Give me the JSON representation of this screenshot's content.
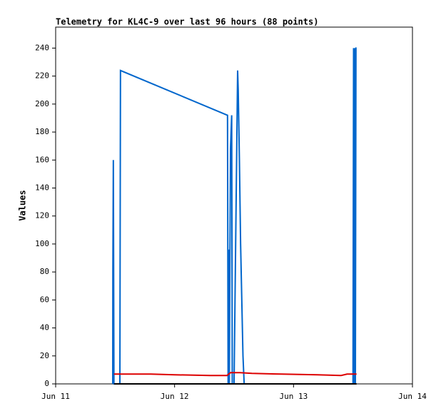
{
  "chart_data": {
    "type": "line",
    "title": "Telemetry for KL4C-9 over last 96 hours (88 points)",
    "ylabel": "Values",
    "xlim": [
      0,
      3
    ],
    "xticks": [
      {
        "value": 0,
        "label": "Jun 11"
      },
      {
        "value": 1,
        "label": "Jun 12"
      },
      {
        "value": 2,
        "label": "Jun 13"
      },
      {
        "value": 3,
        "label": "Jun 14"
      }
    ],
    "ylim": [
      0,
      255
    ],
    "yticks": [
      0,
      20,
      40,
      60,
      80,
      100,
      120,
      140,
      160,
      180,
      200,
      220,
      240
    ],
    "series": [
      {
        "color": "#0066cc",
        "x": [
          0.48,
          0.481,
          0.485,
          0.49,
          0.54,
          0.545,
          1.445,
          1.45,
          1.455,
          1.46,
          1.47,
          1.48,
          1.485,
          1.5,
          1.53,
          1.535,
          1.545,
          1.555,
          1.565,
          1.575,
          1.585,
          2.5,
          2.505,
          2.51,
          2.515,
          2.52,
          2.525,
          2.53
        ],
        "values": [
          0,
          80,
          160,
          0,
          0,
          224,
          192,
          0,
          96,
          0,
          168,
          192,
          0,
          0,
          224,
          210,
          160,
          100,
          60,
          20,
          0,
          0,
          240,
          0,
          240,
          0,
          240,
          240
        ]
      },
      {
        "color": "#dd0000",
        "x": [
          0.49,
          0.8,
          1.0,
          1.3,
          1.44,
          1.47,
          1.55,
          1.65,
          1.9,
          2.2,
          2.4,
          2.45,
          2.53
        ],
        "values": [
          7,
          7,
          6.5,
          6,
          6,
          8,
          8,
          7.5,
          7,
          6.5,
          6,
          7,
          7
        ]
      },
      {
        "color": "#000000",
        "x": [
          0.49,
          2.53
        ],
        "values": [
          0,
          0
        ]
      }
    ]
  }
}
